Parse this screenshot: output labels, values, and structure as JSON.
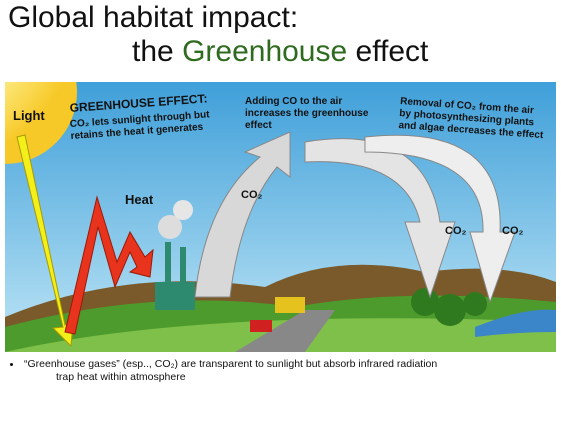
{
  "title": {
    "line1": "Global habitat impact:",
    "line2": [
      "the",
      "Greenhouse",
      "effect"
    ]
  },
  "illustration": {
    "light": "Light",
    "greenhouse_heading": "GREENHOUSE EFFECT:",
    "greenhouse_text": [
      "CO₂ lets sunlight through but",
      "retains the heat it generates"
    ],
    "adding_text": [
      "Adding CO to the air",
      "increases the greenhouse",
      "effect"
    ],
    "removal_text": [
      "Removal of CO₂ from the air",
      "by photosynthesizing plants",
      "and algae decreases the effect"
    ],
    "heat": "Heat",
    "co2_labels": [
      "CO₂",
      "CO₂",
      "CO₂"
    ]
  },
  "bullet": {
    "lines": [
      "“Greenhouse gases” (esp.., CO₂) are transparent to sunlight but absorb infrared radiation",
      "trap heat within atmosphere"
    ]
  }
}
